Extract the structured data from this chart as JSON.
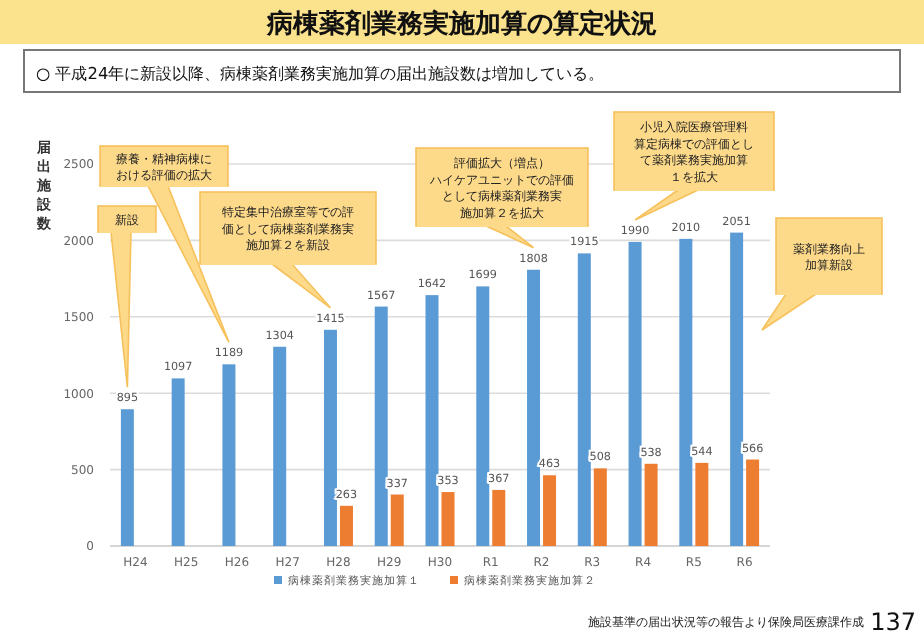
{
  "chart_data": {
    "type": "bar",
    "title": "病棟薬剤業務実施加算の算定状況",
    "subtitle": "○ 平成24年に新設以降、病棟薬剤業務実施加算の届出施設数は増加している。",
    "ylabel": "届出施設数",
    "categories": [
      "H24",
      "H25",
      "H26",
      "H27",
      "H28",
      "H29",
      "H30",
      "R1",
      "R2",
      "R3",
      "R4",
      "R5",
      "R6"
    ],
    "series": [
      {
        "name": "病棟薬剤業務実施加算１",
        "color": "#5b9bd5",
        "values": [
          895,
          1097,
          1189,
          1304,
          1415,
          1567,
          1642,
          1699,
          1808,
          1915,
          1990,
          2010,
          2051
        ]
      },
      {
        "name": "病棟薬剤業務実施加算２",
        "color": "#ed7d31",
        "values": [
          null,
          null,
          null,
          null,
          263,
          337,
          353,
          367,
          463,
          508,
          538,
          544,
          566
        ]
      }
    ],
    "ylim": [
      0,
      2500
    ],
    "yticks": [
      0,
      500,
      1000,
      1500,
      2000,
      2500
    ],
    "grid": "y",
    "data_labels": true,
    "legend": "bottom",
    "annotations": [
      "新設",
      "療養・精神病棟における評価の拡大",
      "特定集中治療室等での評価として病棟薬剤業務実施加算２を新設",
      "評価拡大（増点）ハイケアユニットでの評価として病棟薬剤業務実施加算２を拡大",
      "小児入院医療管理料算定病棟での評価として薬剤業務実施加算１を拡大",
      "薬剤業務向上加算新設",
      "施設基準の届出状況等の報告より保険局医療課作成",
      "137"
    ]
  }
}
